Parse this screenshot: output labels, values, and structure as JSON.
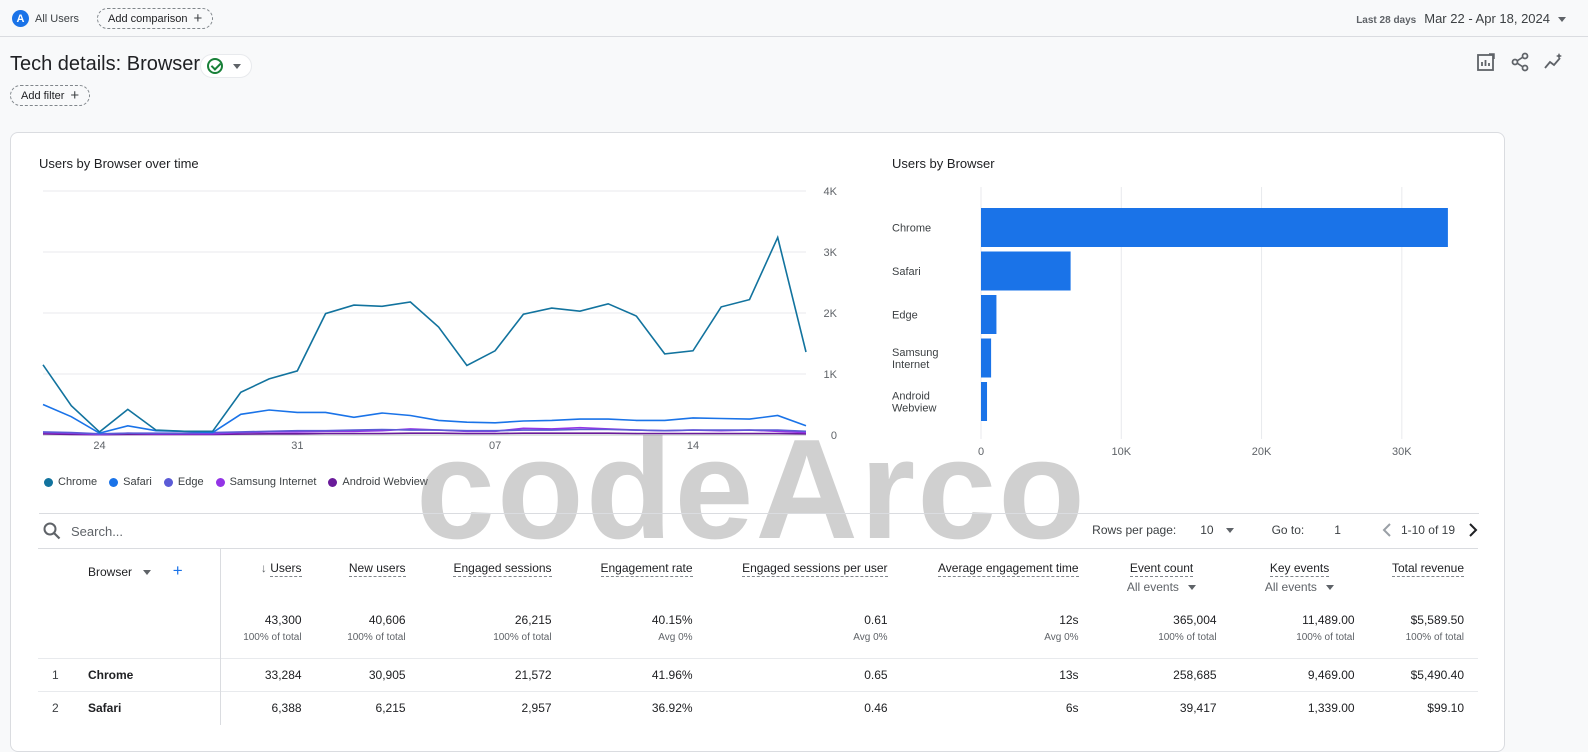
{
  "topbar": {
    "segment_badge": "A",
    "segment_label": "All Users",
    "add_comparison": "Add comparison",
    "date_label": "Last 28 days",
    "date_value": "Mar 22 - Apr 18, 2024"
  },
  "header": {
    "title": "Tech details: Browser",
    "add_filter": "Add filter"
  },
  "line_chart_title": "Users by Browser over time",
  "bar_chart_title": "Users by Browser",
  "watermark": "codeArco",
  "chart_data": [
    {
      "type": "line",
      "title": "Users by Browser over time",
      "x": [
        "Mar 22",
        "Mar 23",
        "Mar 24",
        "Mar 25",
        "Mar 26",
        "Mar 27",
        "Mar 28",
        "Mar 29",
        "Mar 30",
        "Mar 31",
        "Apr 1",
        "Apr 2",
        "Apr 3",
        "Apr 4",
        "Apr 5",
        "Apr 6",
        "Apr 7",
        "Apr 8",
        "Apr 9",
        "Apr 10",
        "Apr 11",
        "Apr 12",
        "Apr 13",
        "Apr 14",
        "Apr 15",
        "Apr 16",
        "Apr 17",
        "Apr 18"
      ],
      "x_ticks": [
        {
          "label": "24",
          "sub": "Mar",
          "index": 2
        },
        {
          "label": "31",
          "sub": "",
          "index": 9
        },
        {
          "label": "07",
          "sub": "Apr",
          "index": 16
        },
        {
          "label": "14",
          "sub": "",
          "index": 23
        }
      ],
      "y_ticks": [
        "0",
        "1K",
        "2K",
        "3K",
        "4K"
      ],
      "ylim": [
        0,
        4000
      ],
      "series": [
        {
          "name": "Chrome",
          "color": "#12739e",
          "values": [
            1150,
            480,
            50,
            420,
            80,
            60,
            60,
            700,
            920,
            1050,
            1990,
            2130,
            2110,
            2180,
            1770,
            1140,
            1380,
            1980,
            2080,
            2030,
            2150,
            1950,
            1330,
            1380,
            2100,
            2220,
            3240,
            1360
          ]
        },
        {
          "name": "Safari",
          "color": "#1a73e8",
          "values": [
            500,
            300,
            30,
            150,
            70,
            60,
            40,
            340,
            410,
            370,
            370,
            290,
            360,
            320,
            240,
            210,
            200,
            230,
            240,
            260,
            260,
            240,
            240,
            280,
            270,
            260,
            320,
            150
          ]
        },
        {
          "name": "Edge",
          "color": "#5b5bd6",
          "values": [
            50,
            40,
            20,
            30,
            30,
            30,
            40,
            50,
            60,
            70,
            70,
            80,
            90,
            80,
            80,
            70,
            70,
            80,
            80,
            90,
            90,
            80,
            70,
            80,
            80,
            80,
            80,
            60
          ]
        },
        {
          "name": "Samsung Internet",
          "color": "#9334e6",
          "values": [
            40,
            30,
            10,
            30,
            20,
            20,
            20,
            40,
            50,
            50,
            60,
            60,
            70,
            100,
            80,
            60,
            60,
            110,
            100,
            120,
            100,
            80,
            70,
            80,
            70,
            80,
            60,
            40
          ]
        },
        {
          "name": "Android Webview",
          "color": "#6a1b9a",
          "values": [
            20,
            10,
            5,
            10,
            10,
            10,
            10,
            15,
            20,
            20,
            25,
            25,
            25,
            30,
            30,
            25,
            25,
            30,
            30,
            30,
            30,
            25,
            25,
            25,
            25,
            25,
            25,
            20
          ]
        }
      ]
    },
    {
      "type": "bar",
      "orientation": "horizontal",
      "title": "Users by Browser",
      "categories": [
        "Chrome",
        "Safari",
        "Edge",
        "Samsung Internet",
        "Android Webview"
      ],
      "values": [
        33284,
        6388,
        1100,
        720,
        430
      ],
      "x_ticks": [
        "0",
        "10K",
        "20K",
        "30K"
      ],
      "xlim": [
        0,
        36000
      ],
      "color": "#1a73e8"
    }
  ],
  "table": {
    "search_placeholder": "Search...",
    "rows_per_page_label": "Rows per page:",
    "rows_per_page_value": "10",
    "goto_label": "Go to:",
    "goto_value": "1",
    "range_label": "1-10 of 19",
    "dim_header": "Browser",
    "columns": [
      {
        "label": "Users",
        "sub": "",
        "sorted": true
      },
      {
        "label": "New users",
        "sub": ""
      },
      {
        "label": "Engaged sessions",
        "sub": ""
      },
      {
        "label": "Engagement rate",
        "sub": ""
      },
      {
        "label": "Engaged sessions per user",
        "sub": ""
      },
      {
        "label": "Average engagement time",
        "sub": ""
      },
      {
        "label": "Event count",
        "sub": "All events"
      },
      {
        "label": "Key events",
        "sub": "All events"
      },
      {
        "label": "Total revenue",
        "sub": ""
      }
    ],
    "totals": [
      {
        "value": "43,300",
        "sub": "100% of total"
      },
      {
        "value": "40,606",
        "sub": "100% of total"
      },
      {
        "value": "26,215",
        "sub": "100% of total"
      },
      {
        "value": "40.15%",
        "sub": "Avg 0%"
      },
      {
        "value": "0.61",
        "sub": "Avg 0%"
      },
      {
        "value": "12s",
        "sub": "Avg 0%"
      },
      {
        "value": "365,004",
        "sub": "100% of total"
      },
      {
        "value": "11,489.00",
        "sub": "100% of total"
      },
      {
        "value": "$5,589.50",
        "sub": "100% of total"
      }
    ],
    "rows": [
      {
        "rank": "1",
        "name": "Chrome",
        "cells": [
          "33,284",
          "30,905",
          "21,572",
          "41.96%",
          "0.65",
          "13s",
          "258,685",
          "9,469.00",
          "$5,490.40"
        ]
      },
      {
        "rank": "2",
        "name": "Safari",
        "cells": [
          "6,388",
          "6,215",
          "2,957",
          "36.92%",
          "0.46",
          "6s",
          "39,417",
          "1,339.00",
          "$99.10"
        ]
      }
    ]
  }
}
